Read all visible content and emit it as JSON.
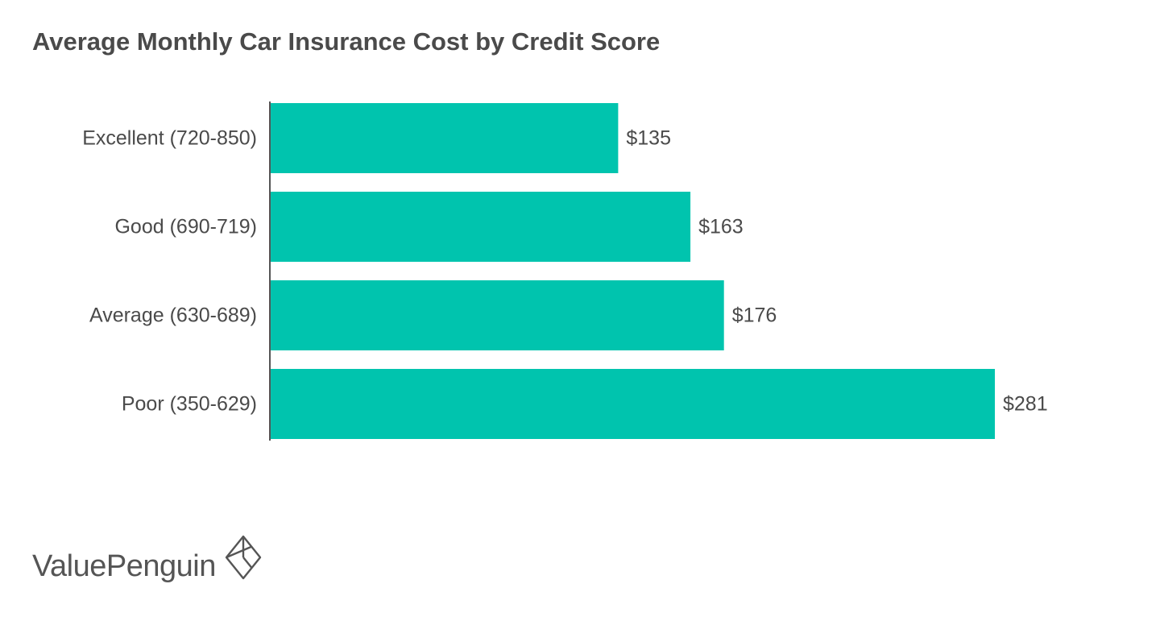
{
  "chart_data": {
    "type": "bar",
    "orientation": "horizontal",
    "title": "Average Monthly Car Insurance Cost by Credit Score",
    "xlabel": "",
    "ylabel": "",
    "categories": [
      "Excellent (720-850)",
      "Good (690-719)",
      "Average (630-689)",
      "Poor (350-629)"
    ],
    "values": [
      135,
      163,
      176,
      281
    ],
    "value_labels": [
      "$135",
      "$163",
      "$176",
      "$281"
    ],
    "xlim": [
      0,
      281
    ],
    "grid": false,
    "legend": "none",
    "bar_color": "#00c4ae"
  },
  "branding": {
    "name": "ValuePenguin",
    "icon": "valuepenguin-diamond-logo-icon"
  }
}
